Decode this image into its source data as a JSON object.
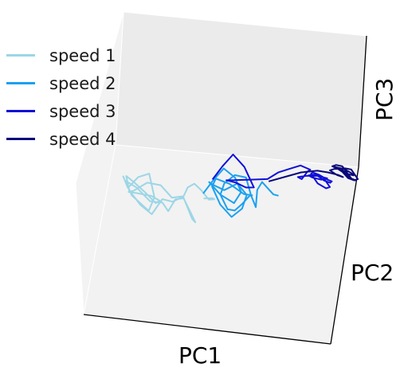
{
  "chart_data": {
    "type": "line",
    "projection": "3d",
    "xlabel": "PC1",
    "ylabel": "PC2",
    "zlabel": "PC3",
    "legend_position": "top-left",
    "grid": false,
    "series": [
      {
        "name": "speed 1",
        "color": "#9cd6e6",
        "x": [
          -0.95,
          -0.9,
          -0.8,
          -0.7,
          -0.66,
          -0.72,
          -0.88,
          -0.93,
          -0.82,
          -0.7,
          -0.63,
          -0.6,
          -0.55,
          -0.48,
          -0.4,
          -0.34,
          -0.3,
          -0.32,
          -0.4,
          -0.5,
          -0.6,
          -0.7,
          -0.8,
          -0.9,
          -0.92,
          -0.85,
          -0.75,
          -0.65,
          -0.62,
          -0.7,
          -0.82,
          -0.9,
          -0.85,
          -0.72,
          -0.6,
          -0.5,
          -0.42,
          -0.38,
          -0.34,
          -0.28,
          -0.22,
          -0.15,
          -0.1,
          -0.12,
          -0.2
        ],
        "y": [
          0.1,
          0.0,
          -0.1,
          -0.05,
          0.15,
          0.3,
          0.35,
          0.2,
          0.05,
          0.1,
          0.25,
          0.45,
          0.55,
          0.5,
          0.4,
          0.55,
          0.6,
          0.4,
          0.3,
          0.35,
          0.45,
          0.5,
          0.4,
          0.25,
          0.1,
          0.0,
          0.05,
          0.2,
          0.35,
          0.4,
          0.3,
          0.15,
          0.05,
          0.0,
          0.1,
          0.2,
          0.1,
          -0.05,
          -0.1,
          -0.05,
          0.0,
          0.05,
          0.1,
          0.15,
          0.1
        ],
        "z": [
          0.05,
          0.0,
          0.02,
          0.04,
          0.0,
          -0.02,
          0.03,
          0.05,
          0.01,
          -0.02,
          0.0,
          0.03,
          0.02,
          0.05,
          0.04,
          0.02,
          0.0,
          -0.02,
          0.03,
          0.02,
          0.04,
          0.0,
          0.01,
          0.03,
          0.05,
          0.02,
          0.0,
          -0.01,
          0.02,
          0.04,
          0.03,
          0.01,
          0.0,
          0.02,
          0.03,
          0.01,
          0.0,
          -0.02,
          0.0,
          0.02,
          0.01,
          -0.01,
          0.0,
          0.01,
          0.0
        ]
      },
      {
        "name": "speed 2",
        "color": "#1ba1f0",
        "x": [
          -0.2,
          -0.1,
          0.0,
          0.1,
          0.15,
          0.08,
          -0.05,
          -0.15,
          -0.1,
          0.0,
          0.12,
          0.2,
          0.15,
          0.05,
          -0.05,
          -0.12,
          -0.08,
          0.05,
          0.18,
          0.25,
          0.22,
          0.15,
          0.08,
          0.02,
          -0.04,
          0.0,
          0.1,
          0.2,
          0.24,
          0.28,
          0.3,
          0.35,
          0.4,
          0.45,
          0.5
        ],
        "y": [
          0.0,
          -0.15,
          -0.2,
          -0.1,
          0.05,
          0.15,
          0.2,
          0.1,
          -0.05,
          -0.1,
          -0.05,
          0.1,
          0.25,
          0.3,
          0.2,
          0.05,
          -0.05,
          -0.1,
          -0.05,
          0.1,
          0.25,
          0.35,
          0.3,
          0.15,
          0.0,
          -0.1,
          -0.15,
          -0.05,
          0.1,
          0.2,
          0.05,
          -0.05,
          0.0,
          0.05,
          0.0
        ],
        "z": [
          0.0,
          0.02,
          0.05,
          0.04,
          0.02,
          0.0,
          0.03,
          0.05,
          0.02,
          0.0,
          0.03,
          0.02,
          0.0,
          -0.02,
          0.0,
          0.03,
          0.04,
          0.02,
          0.0,
          0.02,
          0.04,
          0.03,
          0.0,
          -0.02,
          0.0,
          0.02,
          0.04,
          0.05,
          0.02,
          0.0,
          0.03,
          0.04,
          0.03,
          0.02,
          0.01
        ]
      },
      {
        "name": "speed 3",
        "color": "#1010d8",
        "x": [
          -0.1,
          0.0,
          0.1,
          0.2,
          0.28,
          0.2,
          0.1,
          0.02,
          0.1,
          0.25,
          0.4,
          0.5,
          0.6,
          0.7,
          0.75,
          0.8,
          0.78,
          0.72,
          0.68,
          0.75,
          0.85,
          0.95,
          0.9,
          0.82,
          0.78,
          0.84,
          0.92,
          0.98,
          1.0,
          0.96,
          0.88,
          0.82,
          0.8,
          0.86,
          0.94,
          0.98,
          0.92,
          0.86
        ],
        "y": [
          -0.3,
          -0.45,
          -0.5,
          -0.4,
          -0.2,
          -0.05,
          0.0,
          -0.1,
          -0.25,
          -0.15,
          -0.05,
          0.0,
          0.05,
          0.1,
          0.0,
          -0.1,
          -0.2,
          -0.1,
          0.0,
          0.1,
          0.15,
          0.05,
          -0.05,
          -0.15,
          -0.05,
          0.05,
          0.1,
          0.0,
          -0.1,
          -0.2,
          -0.15,
          -0.05,
          0.05,
          0.1,
          0.05,
          -0.05,
          -0.1,
          0.0
        ],
        "z": [
          0.0,
          0.02,
          0.05,
          0.03,
          0.0,
          0.02,
          0.04,
          0.03,
          0.01,
          0.03,
          0.05,
          0.08,
          0.1,
          0.12,
          0.1,
          0.08,
          0.06,
          0.05,
          0.07,
          0.09,
          0.1,
          0.08,
          0.06,
          0.05,
          0.07,
          0.09,
          0.08,
          0.06,
          0.05,
          0.04,
          0.06,
          0.08,
          0.09,
          0.07,
          0.05,
          0.04,
          0.06,
          0.08
        ]
      },
      {
        "name": "speed 4",
        "color": "#08087a",
        "x": [
          0.4,
          0.55,
          0.7,
          0.85,
          0.95,
          1.05,
          1.1,
          1.05,
          0.98,
          1.02,
          1.1,
          1.18,
          1.2,
          1.12,
          1.05,
          1.0,
          1.08,
          1.16,
          1.22,
          1.18,
          1.1,
          1.04,
          1.0,
          1.06,
          1.14,
          1.2,
          1.24,
          1.18,
          1.1,
          1.05
        ],
        "y": [
          0.2,
          0.22,
          0.24,
          0.25,
          0.2,
          0.1,
          0.0,
          -0.1,
          -0.05,
          0.05,
          0.1,
          0.05,
          -0.05,
          -0.15,
          -0.1,
          0.0,
          0.1,
          0.15,
          0.05,
          -0.05,
          -0.15,
          -0.1,
          0.0,
          0.1,
          0.15,
          0.05,
          -0.05,
          -0.1,
          -0.05,
          0.05
        ],
        "z": [
          0.08,
          0.1,
          0.12,
          0.13,
          0.12,
          0.1,
          0.08,
          0.07,
          0.09,
          0.11,
          0.12,
          0.1,
          0.08,
          0.07,
          0.09,
          0.11,
          0.12,
          0.1,
          0.08,
          0.07,
          0.09,
          0.1,
          0.11,
          0.12,
          0.1,
          0.08,
          0.07,
          0.09,
          0.1,
          0.11
        ]
      }
    ]
  }
}
